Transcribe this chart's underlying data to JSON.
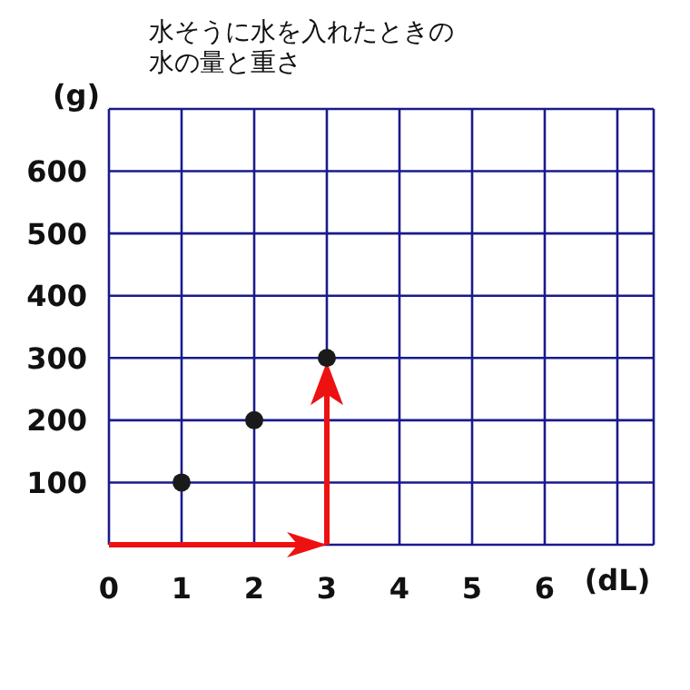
{
  "chart_data": {
    "type": "scatter",
    "title": "水そうに水を入れたときの水の量と重さ",
    "xlabel": "(dL)",
    "ylabel": "(g)",
    "x": [
      1,
      2,
      3
    ],
    "values": [
      100,
      200,
      300
    ],
    "color": "#1a1a1a",
    "marker": "circle",
    "xlim": [
      0,
      7.5
    ],
    "xticks": [
      0,
      1,
      2,
      3,
      4,
      5,
      6,
      {
        "value": 7,
        "label": null
      }
    ],
    "ylim": [
      0,
      700
    ],
    "yticks": [
      {
        "value": 0,
        "label": null
      },
      100,
      200,
      300,
      400,
      500,
      600,
      {
        "value": 700,
        "label": null
      }
    ],
    "grid": true
  }
}
